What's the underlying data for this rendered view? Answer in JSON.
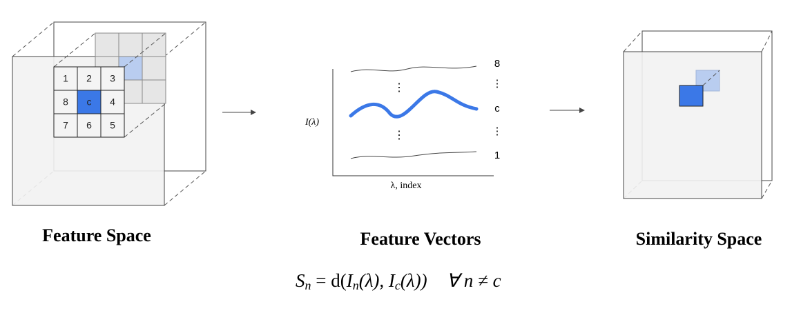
{
  "feature_space": {
    "title": "Feature Space",
    "grid": [
      "1",
      "2",
      "3",
      "8",
      "c",
      "4",
      "7",
      "6",
      "5"
    ]
  },
  "feature_vectors": {
    "title": "Feature Vectors",
    "y_label": "I(λ)",
    "x_label": "λ, index",
    "curve_labels": [
      "8",
      "⋮",
      "c",
      "⋮",
      "1"
    ],
    "inner_dots": [
      "⋮",
      "⋮"
    ]
  },
  "similarity_space": {
    "title": "Similarity Space"
  },
  "formula": [
    "S",
    "n",
    " = d(",
    "I",
    "n",
    "(λ), ",
    "I",
    "c",
    "(λ))",
    "∀ n ≠ c"
  ]
}
